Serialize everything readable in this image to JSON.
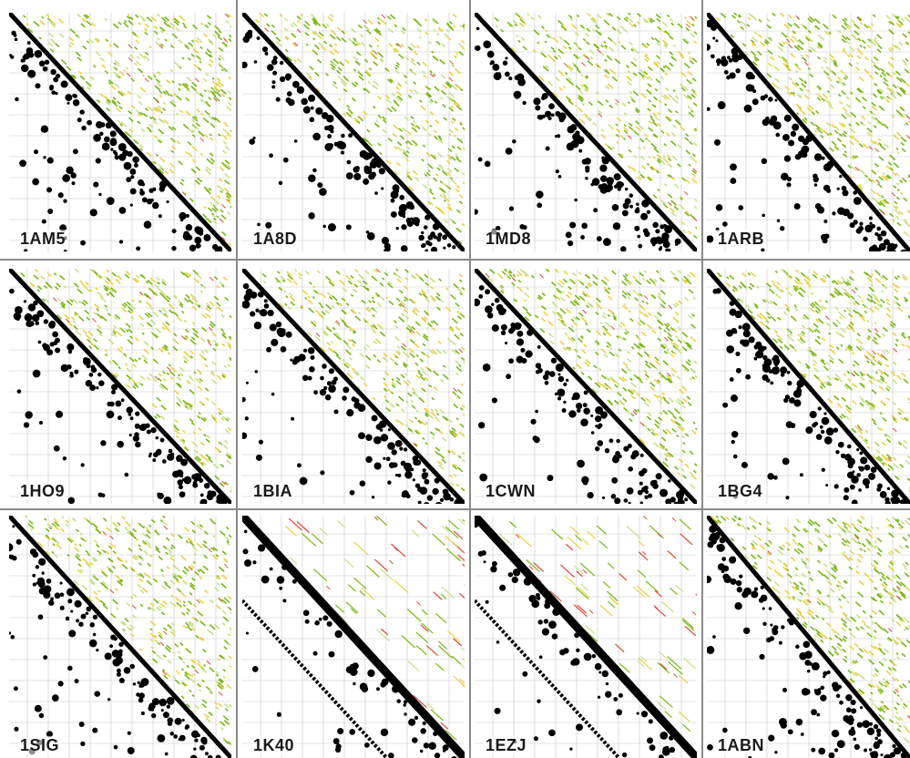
{
  "panels": [
    {
      "label": "1AM5"
    },
    {
      "label": "1A8D"
    },
    {
      "label": "1MD8"
    },
    {
      "label": "1ARB"
    },
    {
      "label": "1HO9"
    },
    {
      "label": "1BIA"
    },
    {
      "label": "1CWN"
    },
    {
      "label": "1BG4"
    },
    {
      "label": "1SIG"
    },
    {
      "label": "1K40"
    },
    {
      "label": "1EZJ"
    },
    {
      "label": "1ABN"
    }
  ],
  "colors": {
    "contact_black": "#000000",
    "upper_green": "#7cb518",
    "upper_green_light": "#c9df8a",
    "upper_red": "#d9483b",
    "upper_yellow": "#e8d24a",
    "gridline": "#c8c8c8",
    "divider": "#8a8a8a"
  }
}
